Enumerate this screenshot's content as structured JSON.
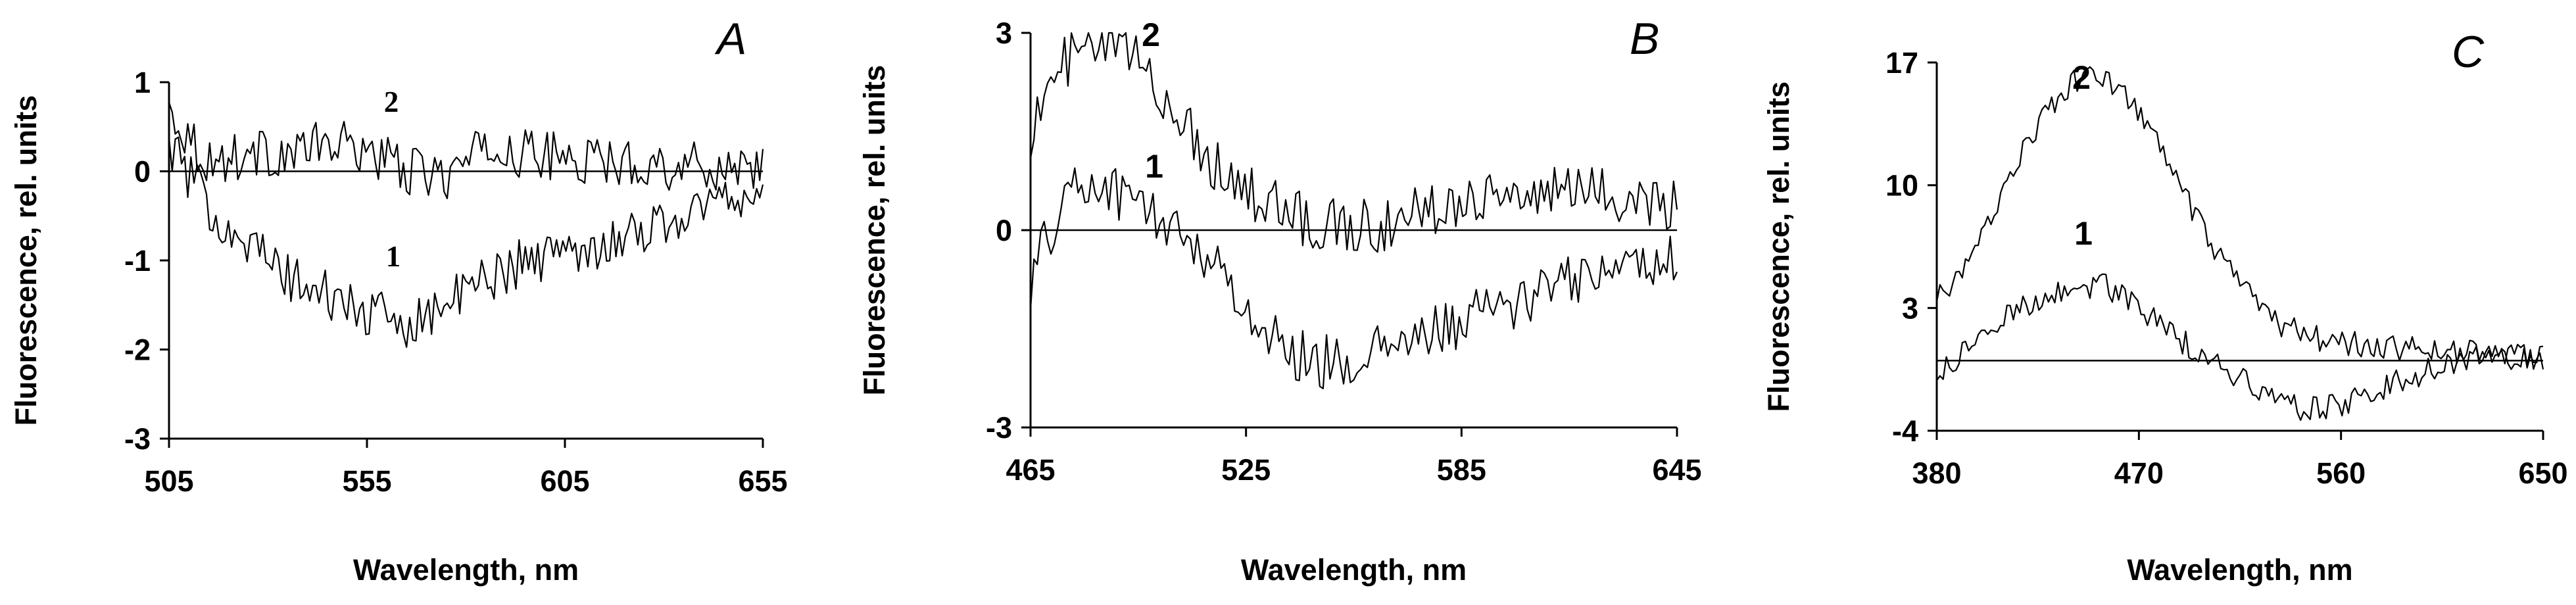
{
  "chart_data": [
    {
      "type": "line",
      "panel_letter": "A",
      "xlabel": "Wavelength, nm",
      "ylabel": "Fluorescence, rel. units",
      "xlim": [
        505,
        655
      ],
      "ylim": [
        -3,
        1
      ],
      "xticks": [
        "505",
        "555",
        "605",
        "655"
      ],
      "yticks": [
        "1",
        "0",
        "-1",
        "-2",
        "-3"
      ],
      "zero_line": true,
      "series": [
        {
          "name": "2",
          "x": [
            505,
            515,
            525,
            535,
            545,
            555,
            565,
            575,
            585,
            595,
            605,
            615,
            625,
            635,
            645,
            655
          ],
          "values": [
            0.7,
            0.1,
            0.2,
            0.2,
            0.3,
            0.25,
            0.0,
            -0.05,
            0.25,
            0.2,
            0.15,
            0.1,
            0.1,
            0.05,
            0.05,
            0.1
          ]
        },
        {
          "name": "1",
          "x": [
            505,
            515,
            525,
            535,
            545,
            555,
            565,
            575,
            585,
            595,
            605,
            615,
            625,
            635,
            645,
            655
          ],
          "values": [
            0.3,
            -0.4,
            -0.8,
            -1.2,
            -1.4,
            -1.6,
            -1.7,
            -1.5,
            -1.2,
            -1.0,
            -0.9,
            -0.8,
            -0.65,
            -0.5,
            -0.3,
            -0.2
          ]
        }
      ]
    },
    {
      "type": "line",
      "panel_letter": "B",
      "xlabel": "Wavelength, nm",
      "ylabel": "Fluorescence, rel. units",
      "xlim": [
        465,
        645
      ],
      "ylim": [
        -3,
        3
      ],
      "xticks": [
        "465",
        "525",
        "585",
        "645"
      ],
      "yticks": [
        "3",
        "0",
        "-3"
      ],
      "zero_line": true,
      "series": [
        {
          "name": "2",
          "x": [
            465,
            475,
            485,
            495,
            505,
            515,
            525,
            535,
            545,
            555,
            565,
            575,
            585,
            595,
            605,
            615,
            625,
            635,
            645
          ],
          "values": [
            1.5,
            2.6,
            2.8,
            2.6,
            1.8,
            1.1,
            0.6,
            0.3,
            0.1,
            0.05,
            0.1,
            0.3,
            0.5,
            0.6,
            0.5,
            0.6,
            0.55,
            0.5,
            0.4
          ]
        },
        {
          "name": "1",
          "x": [
            465,
            475,
            485,
            495,
            505,
            515,
            525,
            535,
            545,
            555,
            565,
            575,
            585,
            595,
            605,
            615,
            625,
            635,
            645
          ],
          "values": [
            -0.8,
            0.6,
            0.7,
            0.4,
            0.0,
            -0.4,
            -1.2,
            -1.8,
            -2.0,
            -2.0,
            -1.8,
            -1.6,
            -1.4,
            -1.2,
            -1.0,
            -0.8,
            -0.6,
            -0.5,
            -0.4
          ]
        }
      ]
    },
    {
      "type": "line",
      "panel_letter": "C",
      "xlabel": "Wavelength, nm",
      "ylabel": "Fluorescence, rel. units",
      "xlim": [
        380,
        650
      ],
      "ylim": [
        -4,
        17
      ],
      "xticks": [
        "380",
        "470",
        "560",
        "650"
      ],
      "yticks": [
        "17",
        "10",
        "3",
        "-4"
      ],
      "zero_line": true,
      "series": [
        {
          "name": "2",
          "x": [
            380,
            395,
            410,
            425,
            440,
            455,
            470,
            485,
            500,
            515,
            530,
            545,
            560,
            575,
            590,
            605,
            620,
            635,
            650
          ],
          "values": [
            3.5,
            5.5,
            10.0,
            13.5,
            15.8,
            16.3,
            14.2,
            10.8,
            7.0,
            4.2,
            2.3,
            1.4,
            1.0,
            0.8,
            0.7,
            0.6,
            0.5,
            0.3,
            0.2
          ]
        },
        {
          "name": "1",
          "x": [
            380,
            395,
            410,
            425,
            440,
            455,
            470,
            485,
            500,
            515,
            530,
            545,
            560,
            575,
            590,
            605,
            620,
            635,
            650
          ],
          "values": [
            -1.0,
            0.8,
            2.5,
            3.5,
            4.2,
            4.3,
            3.0,
            1.5,
            0.2,
            -1.0,
            -2.2,
            -2.8,
            -2.5,
            -1.8,
            -1.0,
            -0.3,
            0.1,
            0.2,
            0.3
          ]
        }
      ]
    }
  ]
}
